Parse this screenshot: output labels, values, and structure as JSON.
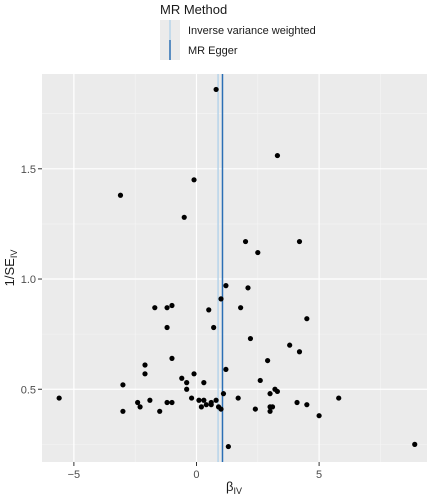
{
  "chart_data": {
    "type": "scatter",
    "x_axis": {
      "label_main": "β",
      "label_sub": "IV",
      "range": [
        -6.3,
        9.4
      ],
      "ticks": [
        -5,
        0,
        5
      ]
    },
    "y_axis": {
      "label_main": "1/SE",
      "label_sub": "IV",
      "range": [
        0.17,
        1.93
      ],
      "ticks": [
        0.5,
        1.0,
        1.5
      ],
      "tick_labels": [
        "0.5",
        "1.0",
        "1.5"
      ]
    },
    "grid": true,
    "legend": {
      "title": "MR Method",
      "placement": "top",
      "entries": [
        {
          "name": "Inverse variance weighted",
          "color": "#b7d4ea"
        },
        {
          "name": "MR Egger",
          "color": "#2b6fb5"
        }
      ]
    },
    "lines": [
      {
        "name": "Inverse variance weighted",
        "type": "vertical",
        "x": 0.88,
        "color": "#b7d4ea"
      },
      {
        "name": "MR Egger",
        "type": "vertical",
        "x": 1.06,
        "color": "#2b6fb5"
      }
    ],
    "points": [
      [
        -5.6,
        0.46
      ],
      [
        -3.1,
        1.38
      ],
      [
        -3.0,
        0.52
      ],
      [
        -3.0,
        0.4
      ],
      [
        -2.4,
        0.44
      ],
      [
        -2.3,
        0.42
      ],
      [
        -2.1,
        0.61
      ],
      [
        -2.1,
        0.57
      ],
      [
        -1.9,
        0.45
      ],
      [
        -1.7,
        0.87
      ],
      [
        -1.5,
        0.4
      ],
      [
        -1.2,
        0.44
      ],
      [
        -1.2,
        0.87
      ],
      [
        -1.2,
        0.78
      ],
      [
        -1.0,
        0.88
      ],
      [
        -1.0,
        0.44
      ],
      [
        -1.0,
        0.64
      ],
      [
        -0.6,
        0.55
      ],
      [
        -0.5,
        1.28
      ],
      [
        -0.4,
        0.5
      ],
      [
        -0.4,
        0.53
      ],
      [
        -0.2,
        0.46
      ],
      [
        -0.1,
        1.45
      ],
      [
        -0.1,
        0.57
      ],
      [
        0.1,
        0.45
      ],
      [
        0.2,
        0.42
      ],
      [
        0.3,
        0.45
      ],
      [
        0.3,
        0.53
      ],
      [
        0.4,
        0.43
      ],
      [
        0.5,
        0.86
      ],
      [
        0.6,
        0.43
      ],
      [
        0.6,
        0.44
      ],
      [
        0.7,
        0.78
      ],
      [
        0.8,
        1.86
      ],
      [
        0.8,
        0.45
      ],
      [
        0.9,
        0.42
      ],
      [
        1.0,
        0.91
      ],
      [
        1.0,
        0.41
      ],
      [
        1.1,
        0.48
      ],
      [
        1.2,
        0.59
      ],
      [
        1.2,
        0.97
      ],
      [
        1.3,
        0.24
      ],
      [
        1.7,
        0.46
      ],
      [
        1.8,
        0.87
      ],
      [
        2.0,
        1.17
      ],
      [
        2.1,
        0.96
      ],
      [
        2.2,
        0.73
      ],
      [
        2.4,
        0.41
      ],
      [
        2.6,
        0.54
      ],
      [
        2.5,
        1.12
      ],
      [
        2.9,
        0.63
      ],
      [
        3.0,
        0.48
      ],
      [
        3.0,
        0.4
      ],
      [
        3.0,
        0.42
      ],
      [
        3.1,
        0.42
      ],
      [
        3.2,
        0.5
      ],
      [
        3.3,
        0.49
      ],
      [
        3.3,
        1.56
      ],
      [
        3.8,
        0.7
      ],
      [
        4.1,
        0.44
      ],
      [
        4.2,
        1.17
      ],
      [
        4.2,
        0.67
      ],
      [
        4.5,
        0.43
      ],
      [
        4.5,
        0.82
      ],
      [
        5.0,
        0.38
      ],
      [
        5.8,
        0.46
      ],
      [
        8.9,
        0.25
      ]
    ]
  }
}
